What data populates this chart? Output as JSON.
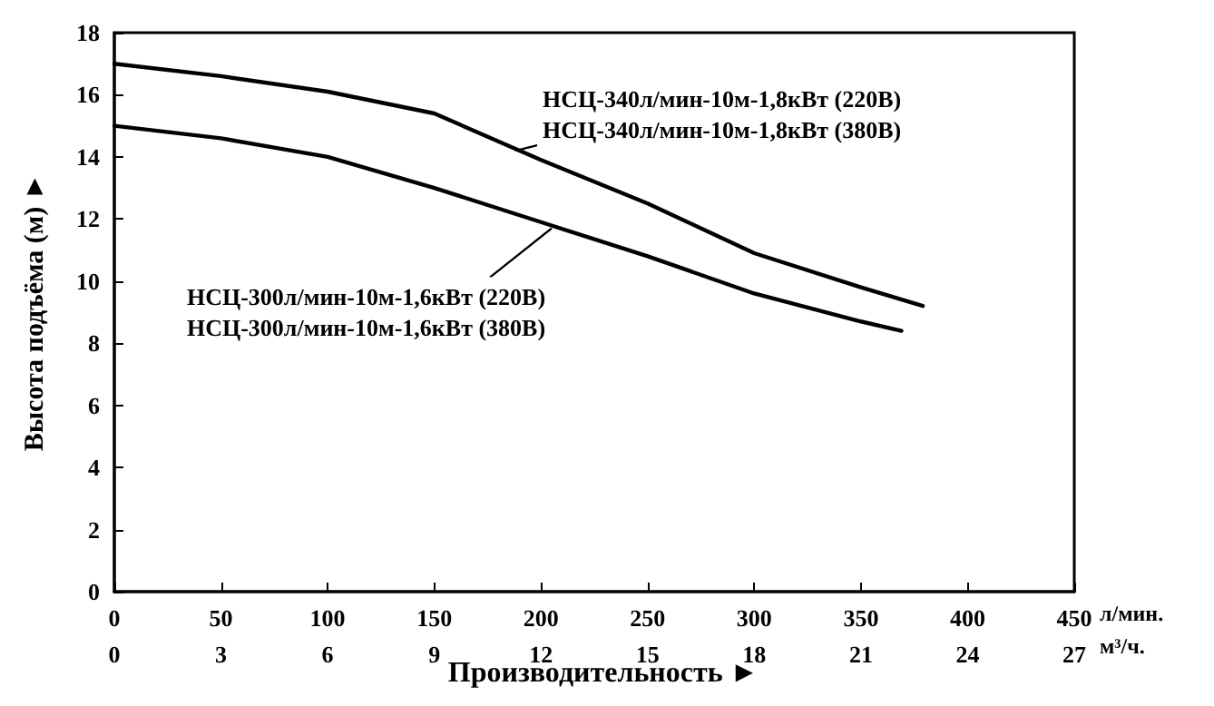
{
  "chart_data": {
    "type": "line",
    "xlabel": "Производительность ►",
    "ylabel": "Высота подъёма (м) ►",
    "x2label": "м³/ч.",
    "xlim": [
      0,
      450
    ],
    "xticks": [
      0,
      50,
      100,
      150,
      200,
      250,
      300,
      350,
      400,
      450
    ],
    "x2lim": [
      0,
      27
    ],
    "x2ticks": [
      0,
      3,
      6,
      9,
      12,
      15,
      18,
      21,
      24,
      27
    ],
    "ylim": [
      0,
      18
    ],
    "yticks": [
      0,
      2,
      4,
      6,
      8,
      10,
      12,
      14,
      16,
      18
    ],
    "grid": false,
    "marker": "none",
    "line_style": "solid",
    "series": [
      {
        "color": "#000000",
        "x": [
          0,
          50,
          100,
          150,
          200,
          250,
          300,
          350,
          379
        ],
        "values": [
          17.0,
          16.6,
          16.1,
          15.4,
          13.9,
          12.5,
          10.9,
          9.8,
          9.2
        ]
      },
      {
        "color": "#000000",
        "x": [
          0,
          50,
          100,
          150,
          200,
          250,
          300,
          350,
          369
        ],
        "values": [
          15.0,
          14.6,
          14.0,
          13.0,
          11.9,
          10.8,
          9.6,
          8.7,
          8.4
        ]
      }
    ],
    "annotations": [
      "л/мин.",
      {
        "text": "НСЦ-340л/мин-10м-1,8кВт (220В)\nНСЦ-340л/мин-10м-1,8кВт (380В)",
        "x": 188,
        "y": 14.2
      },
      {
        "text": "НСЦ-300л/мин-10м-1,6кВт (220В)\nНСЦ-300л/мин-10м-1,6кВт (380В)",
        "x": 205,
        "y": 11.7
      }
    ]
  }
}
